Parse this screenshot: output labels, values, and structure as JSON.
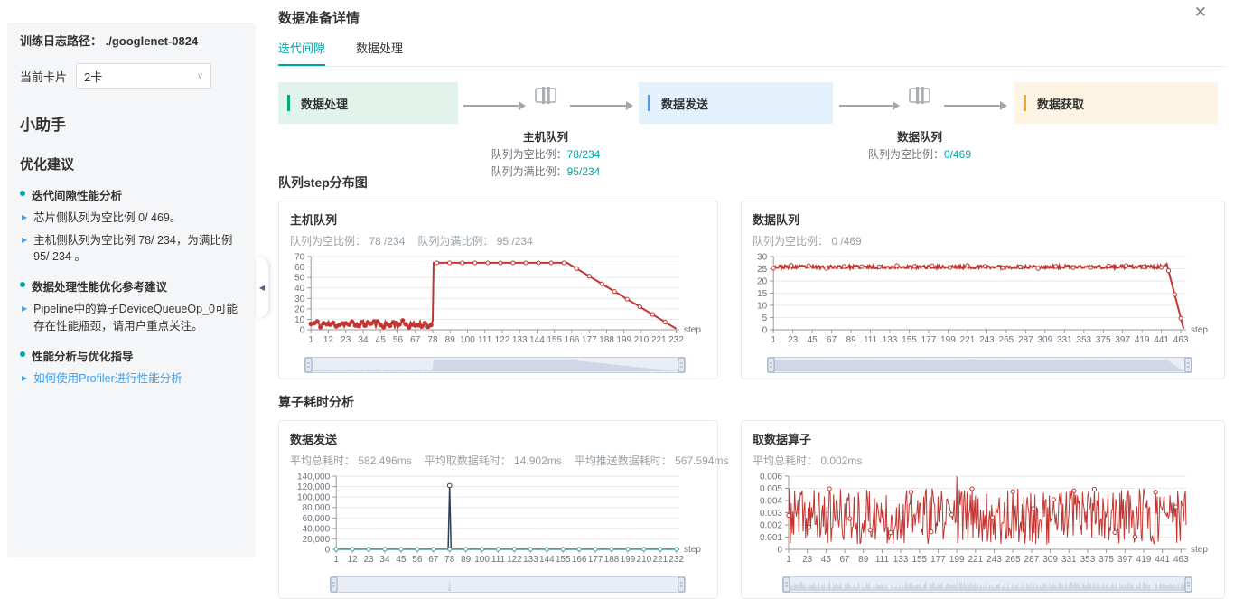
{
  "theme": {
    "accent_teal": "#00a5a7",
    "link_blue": "#3d9fef",
    "chart_red": "#c23531",
    "chart_navy": "#2f3f55",
    "chart_teal": "#4fa2a5",
    "flow_green_bg": "#e2f3eb",
    "flow_green_bar": "#07a87e",
    "flow_blue_bg": "#e3f1fc",
    "flow_blue_bar": "#3e9ff5",
    "flow_yellow_bg": "#fdf4e3",
    "flow_yellow_bar": "#f0a62f"
  },
  "sidebar": {
    "log_path_label": "训练日志路径：",
    "log_path_value": "./googlenet-0824",
    "card_label": "当前卡片",
    "card_value": "2卡",
    "chevron": "∨",
    "assistant_title": "小助手",
    "suggestion_title": "优化建议",
    "groups": [
      {
        "heading": "迭代间隙性能分析",
        "items": [
          {
            "text": "芯片侧队列为空比例 0/ 469。"
          },
          {
            "text": "主机侧队列为空比例 78/ 234，为满比例 95/ 234 。"
          }
        ]
      },
      {
        "heading": "数据处理性能优化参考建议",
        "items": [
          {
            "text": "Pipeline中的算子DeviceQueueOp_0可能存在性能瓶颈，请用户重点关注。"
          }
        ]
      },
      {
        "heading": "性能分析与优化指导",
        "items": [
          {
            "text": "如何使用Profiler进行性能分析",
            "link": true
          }
        ]
      }
    ],
    "collapse_arrow": "◀"
  },
  "main": {
    "title": "数据准备详情",
    "tabs": [
      {
        "label": "迭代间隙"
      },
      {
        "label": "数据处理"
      }
    ],
    "close_label": "✕",
    "flow": {
      "boxes": [
        {
          "label": "数据处理"
        },
        {
          "label": "数据发送"
        },
        {
          "label": "数据获取"
        }
      ],
      "queues": [
        {
          "label": "主机队列",
          "stats": [
            {
              "k": "队列为空比例：",
              "v": "78/234"
            },
            {
              "k": "队列为满比例：",
              "v": "95/234"
            }
          ]
        },
        {
          "label": "数据队列",
          "stats": [
            {
              "k": "队列为空比例：",
              "v": "0/469"
            }
          ]
        }
      ]
    },
    "sections": [
      {
        "heading": "队列step分布图"
      },
      {
        "heading": "算子耗时分析"
      }
    ]
  },
  "chart_data": [
    {
      "type": "line",
      "card_title": "主机队列",
      "stats": [
        {
          "label": "队列为空比例：",
          "value": "78 /234"
        },
        {
          "label": "队列为满比例：",
          "value": "95 /234"
        }
      ],
      "xlabel": "step",
      "xlim": [
        1,
        234
      ],
      "xticks": [
        1,
        12,
        23,
        34,
        45,
        56,
        67,
        78,
        89,
        100,
        111,
        122,
        133,
        144,
        155,
        166,
        177,
        188,
        199,
        210,
        221,
        232
      ],
      "ylim": [
        0,
        70
      ],
      "yticks": [
        0,
        10,
        20,
        30,
        40,
        50,
        60,
        70
      ],
      "ytick_labels": [
        "0",
        "10",
        "20",
        "30",
        "40",
        "50",
        "60",
        "70"
      ],
      "grid": true,
      "legend": "none",
      "slider": true,
      "series": [
        {
          "name": "主机队列",
          "color": "#c23531",
          "width": 2,
          "pieces": [
            {
              "type": "noise",
              "x0": 1,
              "x1": 78,
              "min": 2,
              "max": 9,
              "seed": 11,
              "markerEvery": 2,
              "markerFill": true
            },
            {
              "type": "line",
              "markerEvery": 8,
              "points": [
                [
                  78.6,
                  64
                ],
                [
                  163,
                  64
                ],
                [
                  232,
                  1
                ]
              ]
            }
          ]
        }
      ]
    },
    {
      "type": "line",
      "card_title": "数据队列",
      "stats": [
        {
          "label": "队列为空比例：",
          "value": "0 /469"
        }
      ],
      "xlabel": "step",
      "xlim": [
        1,
        469
      ],
      "xticks": [
        1,
        23,
        45,
        67,
        89,
        111,
        133,
        155,
        177,
        199,
        221,
        243,
        265,
        287,
        309,
        331,
        353,
        375,
        397,
        419,
        441,
        463
      ],
      "ylim": [
        0,
        30
      ],
      "yticks": [
        0,
        5,
        10,
        15,
        20,
        25,
        30
      ],
      "ytick_labels": [
        "0",
        "5",
        "10",
        "15",
        "20",
        "25",
        "30"
      ],
      "grid": true,
      "legend": "none",
      "slider": true,
      "series": [
        {
          "name": "数据队列",
          "color": "#c23531",
          "width": 2,
          "pieces": [
            {
              "type": "noise",
              "x0": 1,
              "x1": 443,
              "min": 25.1,
              "max": 26.4,
              "seed": 23,
              "markerEvery": 20
            },
            {
              "type": "line",
              "markerEvery": 7,
              "points": [
                [
                  444,
                  26
                ],
                [
                  447,
                  27
                ],
                [
                  466,
                  0.5
                ]
              ]
            }
          ]
        }
      ]
    },
    {
      "type": "line",
      "card_title": "数据发送",
      "stats": [
        {
          "label": "平均总耗时：",
          "value": "582.496ms"
        },
        {
          "label": "平均取数据耗时：",
          "value": "14.902ms"
        },
        {
          "label": "平均推送数据耗时：",
          "value": "567.594ms"
        }
      ],
      "xlabel": "step",
      "xlim": [
        1,
        234
      ],
      "xticks": [
        1,
        12,
        23,
        34,
        45,
        56,
        67,
        78,
        89,
        100,
        111,
        122,
        133,
        144,
        155,
        166,
        177,
        188,
        199,
        210,
        221,
        232
      ],
      "ylim": [
        0,
        140000
      ],
      "yticks": [
        0,
        20000,
        40000,
        60000,
        80000,
        100000,
        120000,
        140000
      ],
      "ytick_labels": [
        "0",
        "20,000",
        "40,000",
        "60,000",
        "80,000",
        "100,000",
        "120,000",
        "140,000"
      ],
      "grid": true,
      "legend": "none",
      "slider": true,
      "series": [
        {
          "name": "总耗时",
          "color": "#2f3f55",
          "width": 1.5,
          "markersAt": [
            78
          ],
          "pieces": [
            {
              "type": "line",
              "points": [
                [
                  1,
                  180
                ],
                [
                  77,
                  180
                ],
                [
                  78,
                  122000
                ],
                [
                  79,
                  180
                ],
                [
                  234,
                  180
                ]
              ]
            }
          ]
        },
        {
          "name": "取数据耗时",
          "color": "#4fa2a5",
          "width": 1.5,
          "pieces": [
            {
              "type": "line",
              "markerEvery": 11,
              "points": [
                [
                  1,
                  250
                ],
                [
                  234,
                  250
                ]
              ]
            }
          ]
        }
      ]
    },
    {
      "type": "line",
      "card_title": "取数据算子",
      "stats": [
        {
          "label": "平均总耗时：",
          "value": "0.002ms"
        }
      ],
      "xlabel": "step",
      "xlim": [
        1,
        469
      ],
      "xticks": [
        1,
        23,
        45,
        67,
        89,
        111,
        133,
        155,
        177,
        199,
        221,
        243,
        265,
        287,
        309,
        331,
        353,
        375,
        397,
        419,
        441,
        463
      ],
      "ylim": [
        0,
        0.006
      ],
      "yticks": [
        0,
        0.001,
        0.002,
        0.003,
        0.004,
        0.005,
        0.006
      ],
      "ytick_labels": [
        "0",
        "0.001",
        "0.002",
        "0.003",
        "0.004",
        "0.005",
        "0.006"
      ],
      "grid": true,
      "legend": "none",
      "slider": true,
      "series": [
        {
          "name": "取数据算子",
          "color": "#c23531",
          "width": 1,
          "spikes": [
            [
              199,
              0.006
            ]
          ],
          "pieces": [
            {
              "type": "noise",
              "x0": 1,
              "x1": 469,
              "min": 0.0004,
              "max": 0.005,
              "seed": 37,
              "markerEvery": 24
            }
          ]
        }
      ]
    }
  ]
}
